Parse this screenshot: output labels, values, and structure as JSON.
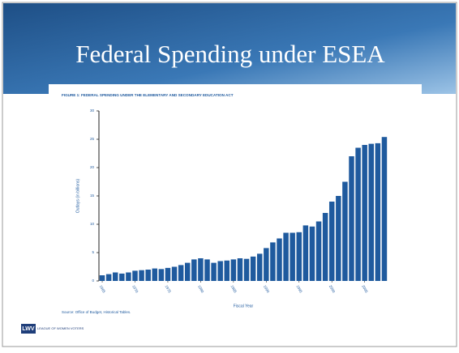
{
  "slide_title": "Federal Spending under ESEA",
  "logo": {
    "mark": "LWV",
    "text": "LEAGUE OF WOMEN VOTERS"
  },
  "chart_data": {
    "type": "bar",
    "title": "FIGURE 1: FEDERAL SPENDING UNDER THE ELEMENTARY AND SECONDARY EDUCATION ACT",
    "x_label": "Fiscal Year",
    "y_label": "Outlays (in billions)",
    "source": "Source: Office of Budget, Historical Tables.",
    "color": "#1f5a9e",
    "x": [
      1965,
      1966,
      1967,
      1968,
      1969,
      1970,
      1971,
      1972,
      1973,
      1974,
      1975,
      1976,
      1977,
      1978,
      1979,
      1980,
      1981,
      1982,
      1983,
      1984,
      1985,
      1986,
      1987,
      1988,
      1989,
      1990,
      1991,
      1992,
      1993,
      1994,
      1995,
      1996,
      1997,
      1998,
      1999,
      2000,
      2001,
      2002,
      2003,
      2004,
      2005,
      2006,
      2007,
      2008
    ],
    "values": [
      1.0,
      1.2,
      1.5,
      1.3,
      1.5,
      1.8,
      1.9,
      2.0,
      2.2,
      2.1,
      2.3,
      2.5,
      2.8,
      3.2,
      3.8,
      4.0,
      3.8,
      3.2,
      3.5,
      3.6,
      3.8,
      4.0,
      3.9,
      4.3,
      4.8,
      5.8,
      6.8,
      7.5,
      8.5,
      8.5,
      8.6,
      9.8,
      9.6,
      10.5,
      12,
      14,
      15,
      17.5,
      22,
      23.5,
      24,
      24.2,
      24.3,
      25.4
    ],
    "xlim": [
      1964.5,
      2008.5
    ],
    "xticks": [
      1965,
      1970,
      1975,
      1980,
      1985,
      1990,
      1995,
      2000,
      2005
    ],
    "ylim": [
      0,
      30
    ],
    "yticks": [
      0,
      5,
      10,
      15,
      20,
      25,
      30
    ],
    "grid": false
  }
}
